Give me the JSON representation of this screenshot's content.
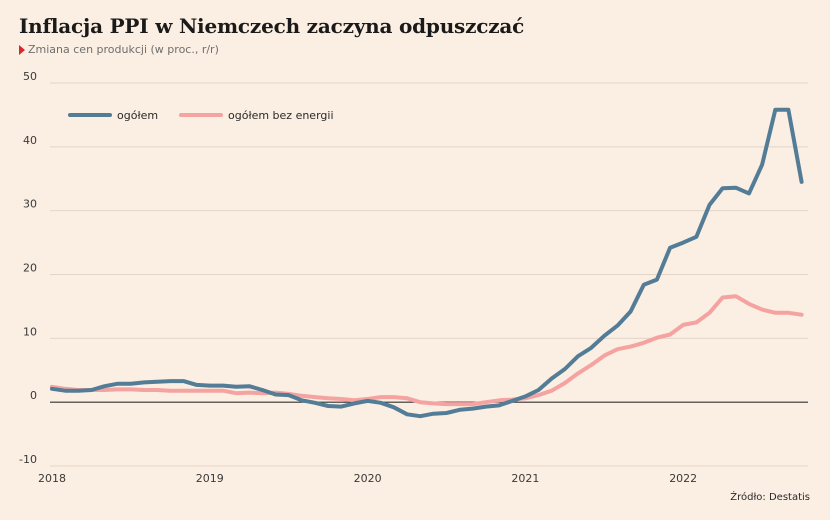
{
  "header": {
    "title": "Inflacja PPI w Niemczech zaczyna odpuszczać",
    "subtitle": "Zmiana cen produkcji (w proc., r/r)"
  },
  "footer": {
    "source": "Źródło: Destatis"
  },
  "colors": {
    "background": "#fbeee2",
    "series_total": "#537c97",
    "series_ex_energy": "#f4a3a0",
    "grid": "#e3d5c8",
    "zero_line": "#333333",
    "subtitle_marker": "#d9272e"
  },
  "icons": {
    "subtitle_marker": "red-triangle-marker"
  },
  "chart_data": {
    "type": "line",
    "title": "Inflacja PPI w Niemczech zaczyna odpuszczać",
    "subtitle": "Zmiana cen produkcji (w proc., r/r)",
    "xlabel": "",
    "ylabel": "",
    "x": [
      "2018-01",
      "2018-02",
      "2018-03",
      "2018-04",
      "2018-05",
      "2018-06",
      "2018-07",
      "2018-08",
      "2018-09",
      "2018-10",
      "2018-11",
      "2018-12",
      "2019-01",
      "2019-02",
      "2019-03",
      "2019-04",
      "2019-05",
      "2019-06",
      "2019-07",
      "2019-08",
      "2019-09",
      "2019-10",
      "2019-11",
      "2019-12",
      "2020-01",
      "2020-02",
      "2020-03",
      "2020-04",
      "2020-05",
      "2020-06",
      "2020-07",
      "2020-08",
      "2020-09",
      "2020-10",
      "2020-11",
      "2020-12",
      "2021-01",
      "2021-02",
      "2021-03",
      "2021-04",
      "2021-05",
      "2021-06",
      "2021-07",
      "2021-08",
      "2021-09",
      "2021-10",
      "2021-11",
      "2021-12",
      "2022-01",
      "2022-02",
      "2022-03",
      "2022-04",
      "2022-05",
      "2022-06",
      "2022-07",
      "2022-08",
      "2022-09",
      "2022-10"
    ],
    "x_ticks": [
      "2018",
      "2019",
      "2020",
      "2021",
      "2022"
    ],
    "ylim": [
      -10,
      50
    ],
    "y_ticks": [
      50,
      40,
      30,
      20,
      10,
      0,
      -10
    ],
    "grid": true,
    "legend": "top-left",
    "series": [
      {
        "name": "ogółem",
        "values": [
          2.1,
          1.8,
          1.8,
          1.9,
          2.5,
          2.9,
          2.9,
          3.1,
          3.2,
          3.3,
          3.3,
          2.7,
          2.6,
          2.6,
          2.4,
          2.5,
          1.9,
          1.2,
          1.1,
          0.3,
          -0.1,
          -0.6,
          -0.7,
          -0.2,
          0.2,
          -0.1,
          -0.8,
          -1.9,
          -2.2,
          -1.8,
          -1.7,
          -1.2,
          -1.0,
          -0.7,
          -0.5,
          0.2,
          0.9,
          1.9,
          3.7,
          5.2,
          7.2,
          8.5,
          10.4,
          12.0,
          14.2,
          18.4,
          19.2,
          24.2,
          25.0,
          25.9,
          30.9,
          33.5,
          33.6,
          32.7,
          37.2,
          45.8,
          45.8,
          34.5
        ]
      },
      {
        "name": "ogółem bez energii",
        "values": [
          2.4,
          2.1,
          1.9,
          1.9,
          1.9,
          2.0,
          2.0,
          1.9,
          1.9,
          1.8,
          1.8,
          1.8,
          1.8,
          1.8,
          1.4,
          1.5,
          1.4,
          1.5,
          1.3,
          1.0,
          0.8,
          0.6,
          0.5,
          0.3,
          0.5,
          0.8,
          0.8,
          0.6,
          0.0,
          -0.2,
          -0.3,
          -0.3,
          -0.3,
          0.0,
          0.3,
          0.4,
          0.6,
          1.1,
          1.8,
          3.0,
          4.5,
          5.8,
          7.3,
          8.3,
          8.7,
          9.3,
          10.1,
          10.6,
          12.1,
          12.5,
          14.0,
          16.4,
          16.6,
          15.4,
          14.5,
          14.0,
          14.0,
          13.7
        ]
      }
    ]
  }
}
